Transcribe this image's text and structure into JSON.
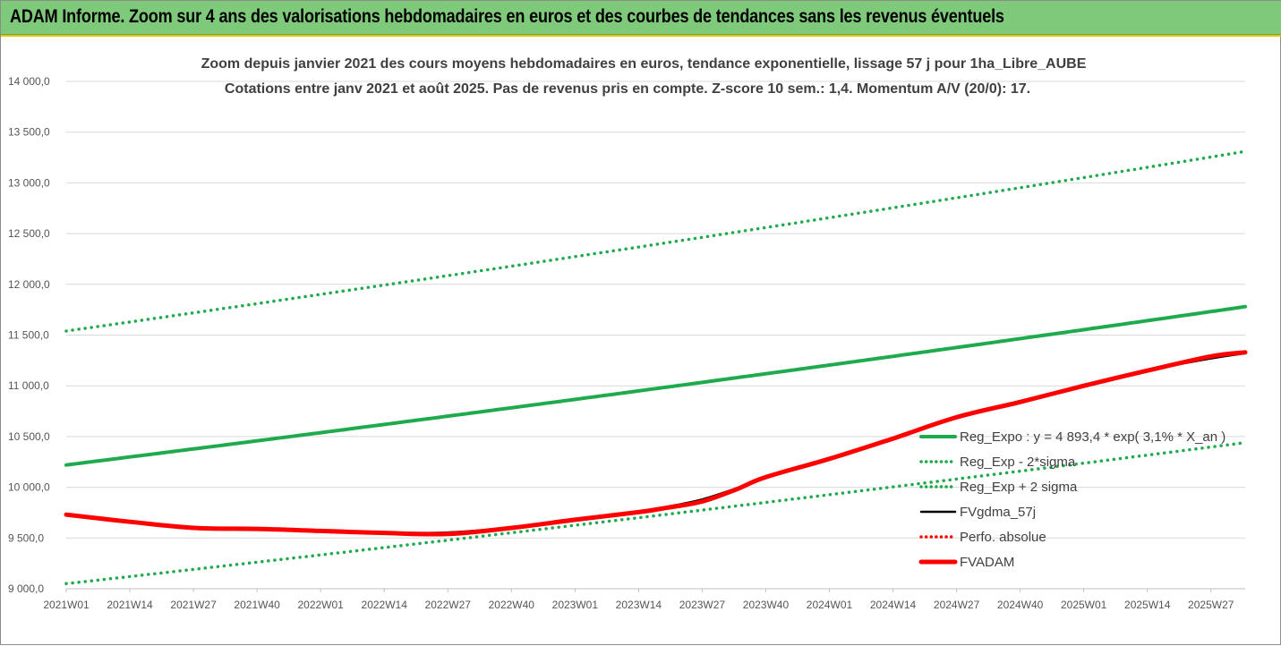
{
  "banner": {
    "title": "ADAM Informe. Zoom sur 4 ans des valorisations hebdomadaires en euros et des courbes de tendances sans les revenus éventuels"
  },
  "colors": {
    "banner_bg": "#7ec97a",
    "trend_green": "#1faa4e",
    "adam_red": "#ff0000",
    "gdma_black": "#000000",
    "perfo_red": "#ff0000",
    "grid": "#d9d9d9"
  },
  "chart_data": {
    "type": "line",
    "title": "Zoom depuis janvier 2021 des cours moyens hebdomadaires en euros, tendance exponentielle, lissage 57 j pour 1ha_Libre_AUBE",
    "subtitle": "Cotations entre janv 2021 et août 2025.  Pas de revenus pris en compte. Z-score 10 sem.: 1,4. Momentum A/V (20/0): 17.",
    "xlabel": "",
    "ylabel": "",
    "ylim": [
      9000,
      14000
    ],
    "yticks": [
      9000,
      9500,
      10000,
      10500,
      11000,
      11500,
      12000,
      12500,
      13000,
      13500,
      14000
    ],
    "ytick_labels": [
      "9 000,0",
      "9 500,0",
      "10 000,0",
      "10 500,0",
      "11 000,0",
      "11 500,0",
      "12 000,0",
      "12 500,0",
      "13 000,0",
      "13 500,0",
      "14 000,0"
    ],
    "x_categories": [
      "2021W01",
      "2021W14",
      "2021W27",
      "2021W40",
      "2022W01",
      "2022W14",
      "2022W27",
      "2022W40",
      "2023W01",
      "2023W14",
      "2023W27",
      "2023W40",
      "2024W01",
      "2024W14",
      "2024W27",
      "2024W40",
      "2025W01",
      "2025W14",
      "2025W27"
    ],
    "x_last": "2025W34",
    "grid": "horizontal",
    "legend_position": "right",
    "series": [
      {
        "name": "Reg_Expo : y = 4 893,4 * exp( 3,1% *  X_an )",
        "style": "solid-thick",
        "color": "#1faa4e",
        "x": [
          "2021W01",
          "2025W34"
        ],
        "values": [
          10220,
          11780
        ],
        "curve": "exponential"
      },
      {
        "name": "Reg_Exp - 2*sigma",
        "style": "dotted",
        "color": "#1faa4e",
        "x": [
          "2021W01",
          "2025W34"
        ],
        "values": [
          9050,
          10440
        ],
        "curve": "exponential"
      },
      {
        "name": "Reg_Exp + 2 sigma",
        "style": "dotted",
        "color": "#1faa4e",
        "x": [
          "2021W01",
          "2025W34"
        ],
        "values": [
          11540,
          13310
        ],
        "curve": "exponential"
      },
      {
        "name": "FVgdma_57j",
        "style": "solid",
        "color": "#000000",
        "x": [
          "2021W01",
          "2021W14",
          "2021W27",
          "2021W40",
          "2022W01",
          "2022W14",
          "2022W27",
          "2022W40",
          "2023W01",
          "2023W14",
          "2023W20",
          "2023W27",
          "2023W34",
          "2023W40",
          "2024W01",
          "2024W14",
          "2024W27",
          "2024W40",
          "2025W01",
          "2025W14",
          "2025W27",
          "2025W34"
        ],
        "values": [
          9725,
          9660,
          9600,
          9590,
          9575,
          9555,
          9555,
          9605,
          9680,
          9760,
          9810,
          9880,
          9990,
          10100,
          10280,
          10480,
          10700,
          10850,
          11000,
          11150,
          11270,
          11320
        ]
      },
      {
        "name": "Perfo. absolue",
        "style": "dotted",
        "color": "#ff0000",
        "x": [],
        "values": []
      },
      {
        "name": "FVADAM",
        "style": "solid-thick",
        "color": "#ff0000",
        "x": [
          "2021W01",
          "2021W14",
          "2021W27",
          "2021W40",
          "2022W01",
          "2022W14",
          "2022W27",
          "2022W40",
          "2023W01",
          "2023W14",
          "2023W20",
          "2023W27",
          "2023W34",
          "2023W40",
          "2024W01",
          "2024W14",
          "2024W27",
          "2024W40",
          "2025W01",
          "2025W14",
          "2025W27",
          "2025W34"
        ],
        "values": [
          9730,
          9660,
          9600,
          9590,
          9570,
          9550,
          9540,
          9600,
          9680,
          9755,
          9800,
          9860,
          9980,
          10100,
          10280,
          10480,
          10690,
          10840,
          11000,
          11150,
          11290,
          11330
        ]
      }
    ]
  }
}
